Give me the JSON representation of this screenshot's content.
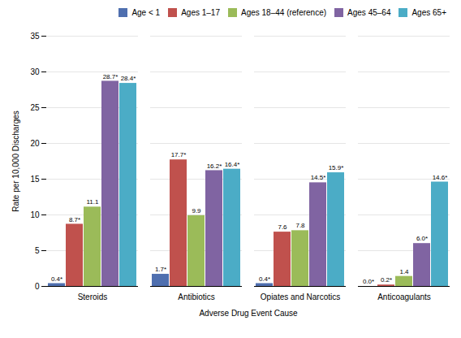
{
  "chart_data": {
    "type": "bar",
    "categories": [
      "Steroids",
      "Antibiotics",
      "Opiates and Narcotics",
      "Anticoagulants"
    ],
    "series": [
      {
        "name": "Age < 1",
        "color": "#4f6faf",
        "values": [
          0.4,
          1.7,
          0.4,
          0.0
        ],
        "value_labels": [
          "0.4*",
          "1.7*",
          "0.4*",
          "0.0*"
        ]
      },
      {
        "name": "Ages 1–17",
        "color": "#c0514d",
        "values": [
          8.7,
          17.7,
          7.6,
          0.2
        ],
        "value_labels": [
          "8.7*",
          "17.7*",
          "7.6",
          "0.2*"
        ]
      },
      {
        "name": "Ages 18–44 (reference)",
        "color": "#9bbb59",
        "values": [
          11.1,
          9.9,
          7.8,
          1.4
        ],
        "value_labels": [
          "11.1",
          "9.9",
          "7.8",
          "1.4"
        ]
      },
      {
        "name": "Ages 45–64",
        "color": "#8064a2",
        "values": [
          28.7,
          16.2,
          14.5,
          6.0
        ],
        "value_labels": [
          "28.7*",
          "16.2*",
          "14.5*",
          "6.0*"
        ]
      },
      {
        "name": "Ages 65+",
        "color": "#4bacc6",
        "values": [
          28.4,
          16.4,
          15.9,
          14.6
        ],
        "value_labels": [
          "28.4*",
          "16.4*",
          "15.9*",
          "14.6*"
        ]
      }
    ],
    "xlabel": "Adverse Drug Event Cause",
    "ylabel": "Rate per 10,000 Discharges",
    "ylim": [
      0,
      35
    ],
    "yticks": [
      0,
      5,
      10,
      15,
      20,
      25,
      30,
      35
    ],
    "grid": true,
    "legend": "upper right",
    "data_labels": true
  }
}
